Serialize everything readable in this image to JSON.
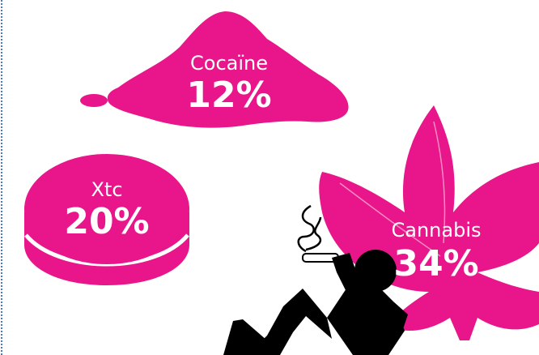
{
  "colors": {
    "magenta": "#e8168a",
    "figure": "#000000",
    "background": "#ffffff"
  },
  "items": [
    {
      "name": "Cocaïne",
      "percent": "12%",
      "icon": "powder-pile-icon"
    },
    {
      "name": "Xtc",
      "percent": "20%",
      "icon": "pill-icon"
    },
    {
      "name": "Cannabis",
      "percent": "34%",
      "icon": "cannabis-leaf-icon"
    }
  ],
  "figure": {
    "icon": "reclining-smoker-icon"
  }
}
